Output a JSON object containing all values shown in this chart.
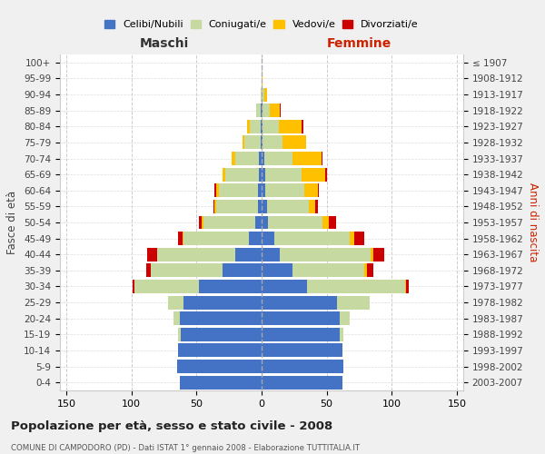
{
  "age_groups": [
    "0-4",
    "5-9",
    "10-14",
    "15-19",
    "20-24",
    "25-29",
    "30-34",
    "35-39",
    "40-44",
    "45-49",
    "50-54",
    "55-59",
    "60-64",
    "65-69",
    "70-74",
    "75-79",
    "80-84",
    "85-89",
    "90-94",
    "95-99",
    "100+"
  ],
  "birth_years": [
    "2003-2007",
    "1998-2002",
    "1993-1997",
    "1988-1992",
    "1983-1987",
    "1978-1982",
    "1973-1977",
    "1968-1972",
    "1963-1967",
    "1958-1962",
    "1953-1957",
    "1948-1952",
    "1943-1947",
    "1938-1942",
    "1933-1937",
    "1928-1932",
    "1923-1927",
    "1918-1922",
    "1913-1917",
    "1908-1912",
    "≤ 1907"
  ],
  "males": {
    "celibi": [
      63,
      65,
      64,
      62,
      63,
      60,
      48,
      30,
      20,
      10,
      5,
      3,
      3,
      2,
      2,
      1,
      1,
      1,
      0,
      0,
      0
    ],
    "coniugati": [
      0,
      0,
      0,
      2,
      5,
      12,
      50,
      55,
      60,
      50,
      40,
      32,
      30,
      26,
      18,
      12,
      8,
      3,
      1,
      0,
      0
    ],
    "vedovi": [
      0,
      0,
      0,
      0,
      0,
      0,
      0,
      0,
      0,
      1,
      1,
      1,
      2,
      2,
      3,
      2,
      2,
      0,
      0,
      0,
      0
    ],
    "divorziati": [
      0,
      0,
      0,
      0,
      0,
      0,
      1,
      4,
      8,
      3,
      2,
      1,
      1,
      0,
      0,
      0,
      0,
      0,
      0,
      0,
      0
    ]
  },
  "females": {
    "nubili": [
      62,
      63,
      62,
      60,
      60,
      58,
      35,
      24,
      14,
      10,
      5,
      4,
      3,
      3,
      2,
      1,
      1,
      1,
      0,
      0,
      0
    ],
    "coniugate": [
      0,
      0,
      0,
      3,
      8,
      25,
      75,
      55,
      70,
      58,
      42,
      32,
      30,
      28,
      22,
      15,
      12,
      5,
      2,
      0,
      0
    ],
    "vedove": [
      0,
      0,
      0,
      0,
      0,
      0,
      1,
      2,
      2,
      3,
      5,
      5,
      10,
      18,
      22,
      18,
      18,
      8,
      2,
      1,
      0
    ],
    "divorziate": [
      0,
      0,
      0,
      0,
      0,
      0,
      2,
      5,
      8,
      8,
      5,
      2,
      1,
      1,
      1,
      0,
      1,
      1,
      0,
      0,
      0
    ]
  },
  "colors": {
    "celibi": "#4472c4",
    "coniugati": "#c5d9a0",
    "vedovi": "#ffc000",
    "divorziati": "#cc0000"
  },
  "xlim": 155,
  "xticks": [
    150,
    100,
    50,
    0,
    50,
    100,
    150
  ],
  "title": "Popolazione per età, sesso e stato civile - 2008",
  "subtitle": "COMUNE DI CAMPODORO (PD) - Dati ISTAT 1° gennaio 2008 - Elaborazione TUTTITALIA.IT",
  "xlabel_left": "Maschi",
  "xlabel_right": "Femmine",
  "ylabel_left": "Fasce di età",
  "ylabel_right": "Anni di nascita",
  "legend_labels": [
    "Celibi/Nubili",
    "Coniugati/e",
    "Vedovi/e",
    "Divorziati/e"
  ],
  "bg_color": "#f0f0f0",
  "plot_bg_color": "#ffffff"
}
